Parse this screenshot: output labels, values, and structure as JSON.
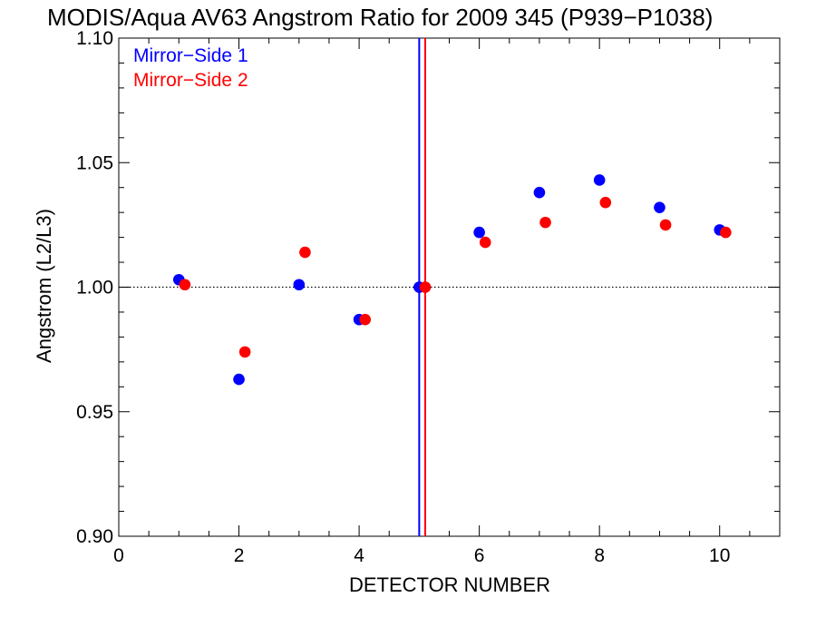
{
  "chart_data": {
    "type": "scatter",
    "title": "MODIS/Aqua AV63 Angstrom Ratio for 2009 345 (P939−P1038)",
    "xlabel": "DETECTOR NUMBER",
    "ylabel": "Angstrom (L2/L3)",
    "xlim": [
      0,
      11
    ],
    "ylim": [
      0.9,
      1.1
    ],
    "x_ticks": [
      0,
      2,
      4,
      6,
      8,
      10
    ],
    "x_tick_labels": [
      "0",
      "2",
      "4",
      "6",
      "8",
      "10"
    ],
    "y_ticks": [
      0.9,
      0.95,
      1.0,
      1.05,
      1.1
    ],
    "y_tick_labels": [
      "0.90",
      "0.95",
      "1.00",
      "1.05",
      "1.10"
    ],
    "reference_line_y": 1.0,
    "vertical_lines": [
      {
        "x": 5.0,
        "color": "#0000ff"
      },
      {
        "x": 5.1,
        "color": "#ff0000"
      }
    ],
    "legend": {
      "placement": "top-left"
    },
    "grid": false,
    "series": [
      {
        "name": "Mirror−Side 1",
        "color": "#0000ff",
        "x": [
          1,
          2,
          3,
          4,
          5,
          6,
          7,
          8,
          9,
          10
        ],
        "y": [
          1.003,
          0.963,
          1.001,
          0.987,
          1.0,
          1.022,
          1.038,
          1.043,
          1.032,
          1.023
        ]
      },
      {
        "name": "Mirror−Side 2",
        "color": "#ff0000",
        "x": [
          1.1,
          2.1,
          3.1,
          4.1,
          5.1,
          6.1,
          7.1,
          8.1,
          9.1,
          10.1
        ],
        "y": [
          1.001,
          0.974,
          1.014,
          0.987,
          1.0,
          1.018,
          1.026,
          1.034,
          1.025,
          1.022
        ]
      }
    ]
  }
}
